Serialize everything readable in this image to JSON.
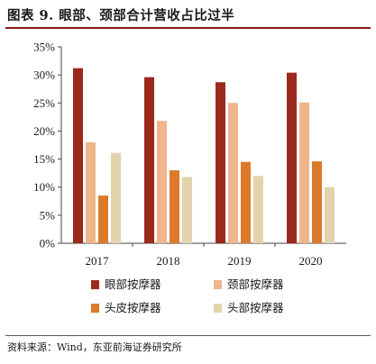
{
  "title": "图表 9.   眼部、颈部合计营收占比过半",
  "source": "资料来源：Wind，东亚前海证券研究所",
  "chart_data": {
    "type": "bar",
    "categories": [
      "2017",
      "2018",
      "2019",
      "2020"
    ],
    "series": [
      {
        "name": "眼部按摩器",
        "color": "#9c2a1c",
        "values": [
          31.2,
          29.6,
          28.7,
          30.4
        ]
      },
      {
        "name": "颈部按摩器",
        "color": "#efb58c",
        "values": [
          18.0,
          21.8,
          25.0,
          25.1
        ]
      },
      {
        "name": "头皮按摩器",
        "color": "#dd7a2a",
        "values": [
          8.5,
          13.0,
          14.5,
          14.6
        ]
      },
      {
        "name": "头部按摩器",
        "color": "#e3d3ac",
        "values": [
          16.1,
          11.8,
          12.0,
          10.0
        ]
      }
    ],
    "ylim": [
      0,
      35
    ],
    "yticks": [
      0,
      5,
      10,
      15,
      20,
      25,
      30,
      35
    ],
    "ytick_labels": [
      "0%",
      "5%",
      "10%",
      "15%",
      "20%",
      "25%",
      "30%",
      "35%"
    ],
    "legend_position": "bottom",
    "grid": false
  }
}
